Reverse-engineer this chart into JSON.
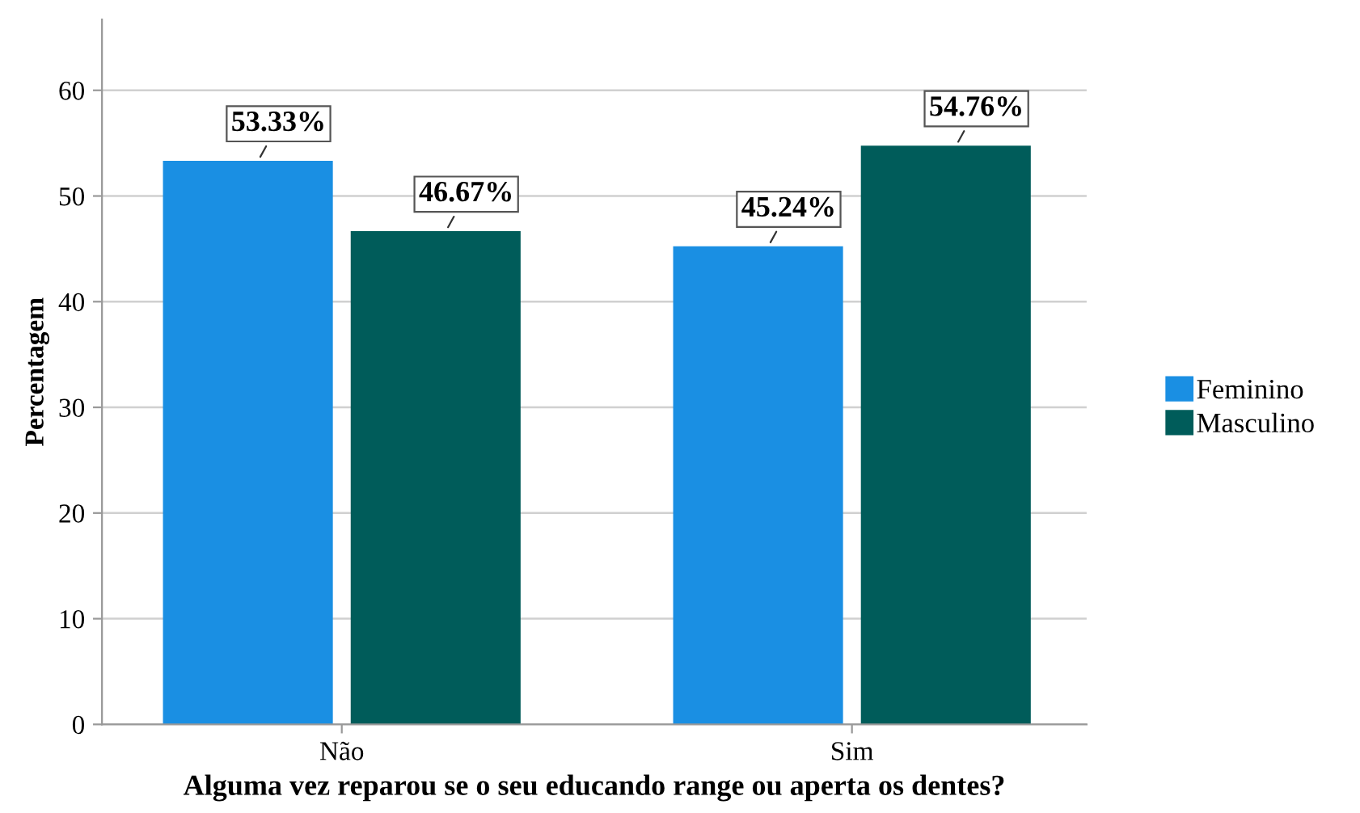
{
  "chart_data": {
    "type": "bar",
    "xlabel": "Alguma vez reparou se o seu educando range ou aperta os dentes?",
    "ylabel": "Percentagem",
    "categories": [
      "Não",
      "Sim"
    ],
    "series": [
      {
        "name": "Feminino",
        "color": "#1a8fe3",
        "values": [
          53.33,
          45.24
        ],
        "value_labels": [
          "53.33%",
          "45.24%"
        ]
      },
      {
        "name": "Masculino",
        "color": "#005c5a",
        "values": [
          46.67,
          54.76
        ],
        "value_labels": [
          "46.67%",
          "54.76%"
        ]
      }
    ],
    "ylim": [
      0,
      66.7
    ],
    "yticks": [
      0,
      10,
      20,
      30,
      40,
      50,
      60
    ],
    "grid": "y",
    "legend": "right"
  }
}
